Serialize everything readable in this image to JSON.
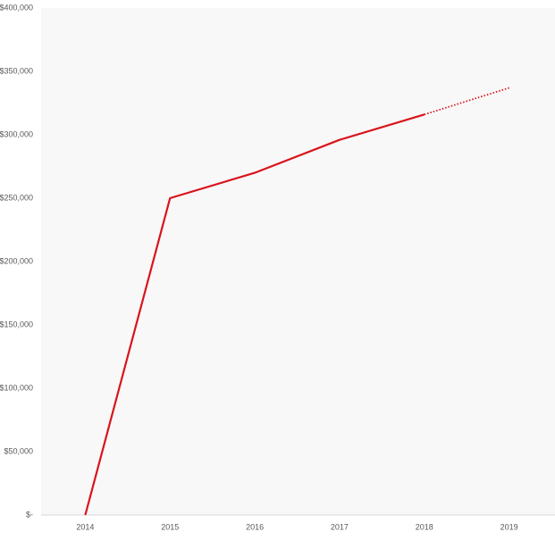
{
  "chart_data": {
    "type": "line",
    "categories": [
      "2014",
      "2015",
      "2016",
      "2017",
      "2018",
      "2019"
    ],
    "series": [
      {
        "color": "#d9141b",
        "values": [
          0,
          250000,
          270000,
          296000,
          316000,
          null
        ]
      },
      {
        "color": "#d9141b",
        "dashed": true,
        "values": [
          null,
          null,
          null,
          null,
          316000,
          337000
        ]
      }
    ],
    "ylim": [
      0,
      400000
    ],
    "yticks": [
      {
        "value": 0,
        "label": "$-"
      },
      {
        "value": 50000,
        "label": "$50,000"
      },
      {
        "value": 100000,
        "label": "$100,000"
      },
      {
        "value": 150000,
        "label": "$150,000"
      },
      {
        "value": 200000,
        "label": "$200,000"
      },
      {
        "value": 250000,
        "label": "$250,000"
      },
      {
        "value": 300000,
        "label": "$300,000"
      },
      {
        "value": 350000,
        "label": "$350,000"
      },
      {
        "value": 400000,
        "label": "$400,000"
      }
    ]
  }
}
